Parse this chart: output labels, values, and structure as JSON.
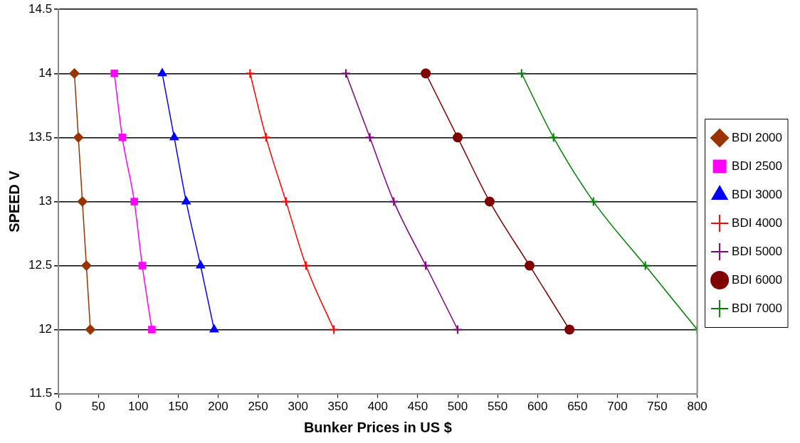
{
  "chart_data": {
    "type": "line",
    "xlabel": "Bunker Prices in US $",
    "ylabel": "SPEED V",
    "series": [
      {
        "name": "BDI 2000",
        "color": "#993300",
        "marker": "diamond",
        "x": [
          20,
          25,
          30,
          35,
          40
        ],
        "values": [
          14,
          13.5,
          13,
          12.5,
          12
        ]
      },
      {
        "name": "BDI 2500",
        "color": "#ff00ff",
        "marker": "square",
        "x": [
          70,
          80,
          95,
          105,
          117
        ],
        "values": [
          14,
          13.5,
          13,
          12.5,
          12
        ]
      },
      {
        "name": "BDI 3000",
        "color": "#0000ff",
        "marker": "triangle",
        "x": [
          130,
          145,
          160,
          178,
          195
        ],
        "values": [
          14,
          13.5,
          13,
          12.5,
          12
        ]
      },
      {
        "name": "BDI 4000",
        "color": "#ff0000",
        "marker": "cross",
        "x": [
          240,
          260,
          285,
          310,
          345
        ],
        "values": [
          14,
          13.5,
          13,
          12.5,
          12
        ]
      },
      {
        "name": "BDI 5000",
        "color": "#800080",
        "marker": "cross",
        "x": [
          360,
          390,
          420,
          460,
          500
        ],
        "values": [
          14,
          13.5,
          13,
          12.5,
          12
        ]
      },
      {
        "name": "BDI 6000",
        "color": "#800000",
        "marker": "circle",
        "x": [
          460,
          500,
          540,
          590,
          640
        ],
        "values": [
          14,
          13.5,
          13,
          12.5,
          12
        ]
      },
      {
        "name": "BDI 7000",
        "color": "#008000",
        "marker": "cross",
        "x": [
          580,
          620,
          670,
          735,
          800
        ],
        "values": [
          14,
          13.5,
          13,
          12.5,
          12
        ]
      }
    ],
    "xlim": [
      0,
      800
    ],
    "xticks": [
      0,
      50,
      100,
      150,
      200,
      250,
      300,
      350,
      400,
      450,
      500,
      550,
      600,
      650,
      700,
      750,
      800
    ],
    "ylim": [
      11.5,
      14.5
    ],
    "yticks": [
      11.5,
      12,
      12.5,
      13,
      13.5,
      14,
      14.5
    ],
    "grid": "y",
    "legend": "right"
  }
}
